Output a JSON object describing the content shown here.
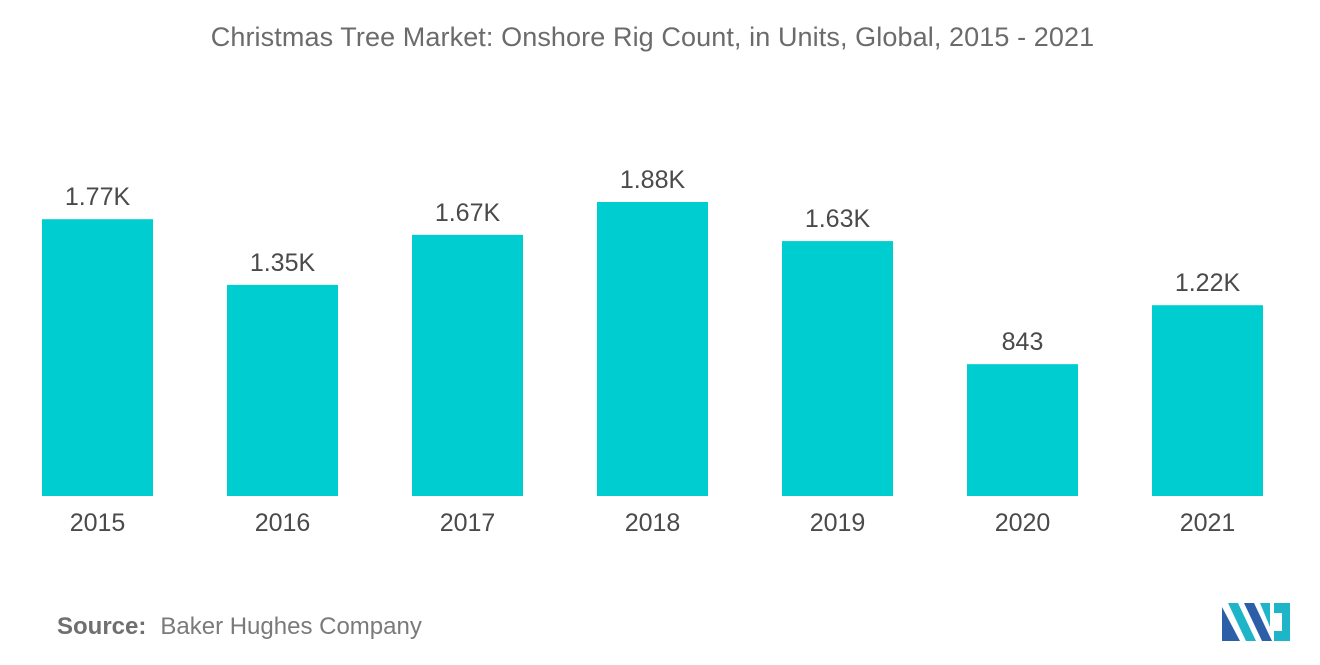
{
  "chart_data": {
    "type": "bar",
    "title": "Christmas Tree Market: Onshore Rig Count, in Units, Global, 2015 - 2021",
    "xlabel": "",
    "ylabel": "",
    "categories": [
      "2015",
      "2016",
      "2017",
      "2018",
      "2019",
      "2020",
      "2021"
    ],
    "values": [
      1770,
      1350,
      1670,
      1880,
      1630,
      843,
      1220
    ],
    "data_labels": [
      "1.77K",
      "1.35K",
      "1.67K",
      "1.88K",
      "1.63K",
      "843",
      "1.22K"
    ],
    "ylim": [
      0,
      1880
    ],
    "grid": false,
    "legend": "none",
    "bar_color": "#00cdd0"
  },
  "source": {
    "label": "Source:",
    "text": "Baker Hughes Company"
  },
  "logo": {
    "icon": "mordor-intelligence-logo",
    "colors": [
      "#2d5fa8",
      "#1fb5c9"
    ]
  }
}
